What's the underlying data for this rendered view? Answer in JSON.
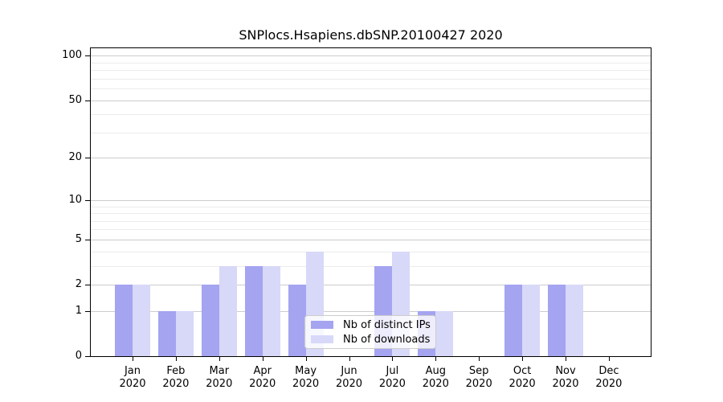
{
  "title": "SNPlocs.Hsapiens.dbSNP.20100427 2020",
  "chart_data": {
    "type": "bar",
    "title": "SNPlocs.Hsapiens.dbSNP.20100427 2020",
    "y_scale": "log1p",
    "grid": true,
    "legend_position": "lower center",
    "categories": [
      "Jan 2020",
      "Feb 2020",
      "Mar 2020",
      "Apr 2020",
      "May 2020",
      "Jun 2020",
      "Jul 2020",
      "Aug 2020",
      "Sep 2020",
      "Oct 2020",
      "Nov 2020",
      "Dec 2020"
    ],
    "series": [
      {
        "name": "Nb of distinct IPs",
        "color": "#a4a4f1",
        "values": [
          2,
          1,
          2,
          3,
          2,
          0,
          3,
          1,
          0,
          2,
          2,
          0
        ]
      },
      {
        "name": "Nb of downloads",
        "color": "#d8d8f8",
        "values": [
          2,
          1,
          3,
          3,
          4,
          0,
          4,
          1,
          0,
          2,
          2,
          0
        ]
      }
    ],
    "y_major_ticks": [
      0,
      1,
      2,
      5,
      10,
      20,
      50,
      100
    ],
    "y_minor_gridlines": [
      3,
      4,
      6,
      7,
      8,
      9,
      30,
      40,
      60,
      70,
      80,
      90
    ],
    "ylim": [
      0,
      114
    ],
    "xlabel": "",
    "ylabel": ""
  },
  "colors": {
    "major_gridline": "#cccccc",
    "minor_gridline": "#ebebeb",
    "axis_spine": "#000000"
  }
}
